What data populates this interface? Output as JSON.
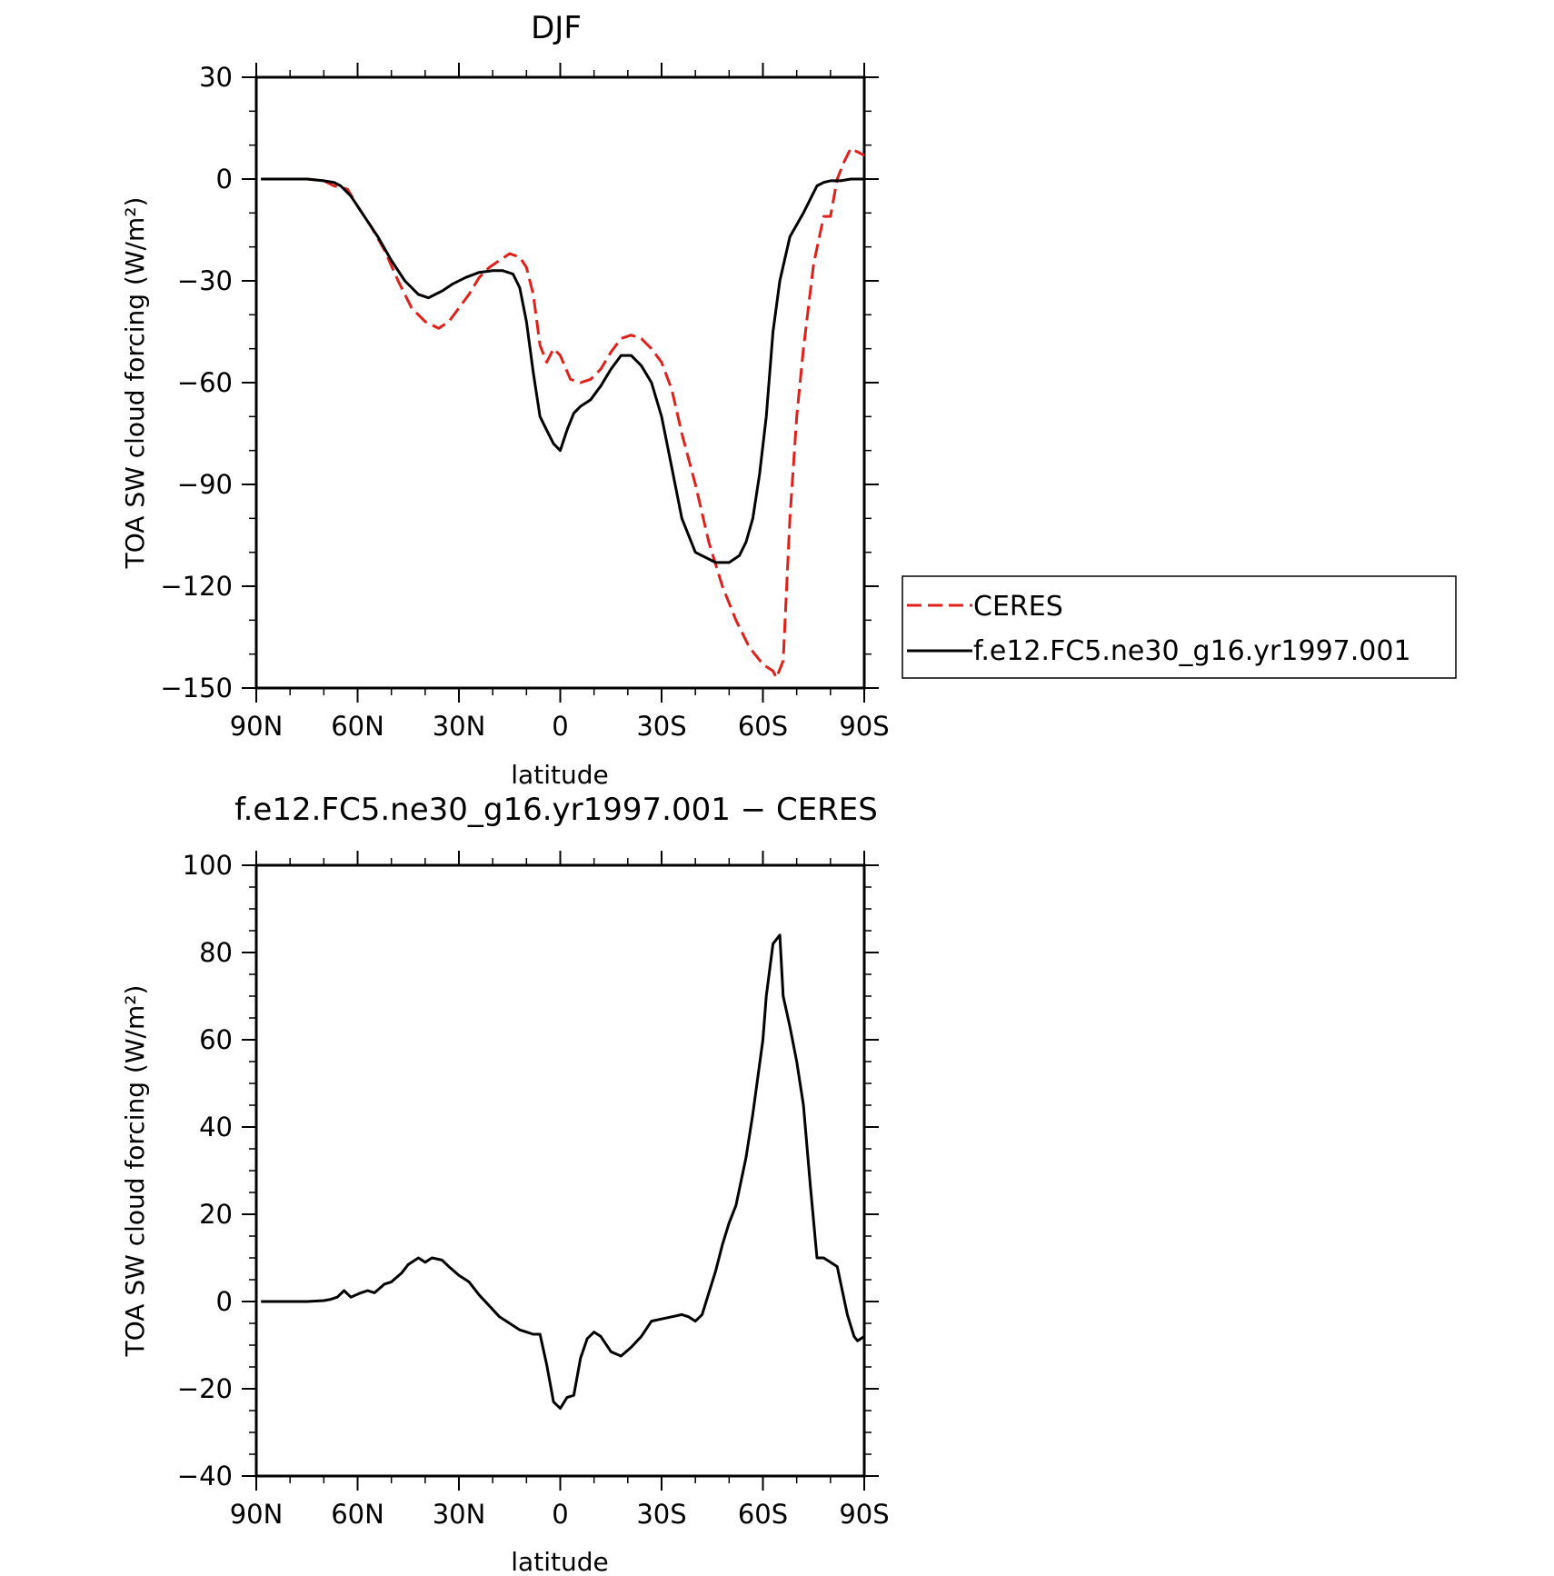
{
  "colors": {
    "ceres": "#e0201b",
    "model": "#000000",
    "axes": "#000000",
    "background": "#ffffff"
  },
  "chart_data": [
    {
      "type": "line",
      "title": "DJF",
      "xlabel": "latitude",
      "ylabel": "TOA SW cloud forcing (W/m²)",
      "xlim": [
        90,
        -90
      ],
      "ylim": [
        -150,
        30
      ],
      "x_ticks": [
        {
          "value": 90,
          "label": "90N"
        },
        {
          "value": 60,
          "label": "60N"
        },
        {
          "value": 30,
          "label": "30N"
        },
        {
          "value": 0,
          "label": "0"
        },
        {
          "value": -30,
          "label": "30S"
        },
        {
          "value": -60,
          "label": "60S"
        },
        {
          "value": -90,
          "label": "90S"
        }
      ],
      "y_ticks": [
        {
          "value": 30,
          "label": "30"
        },
        {
          "value": 0,
          "label": "0"
        },
        {
          "value": -30,
          "label": "−30"
        },
        {
          "value": -60,
          "label": "−60"
        },
        {
          "value": -90,
          "label": "−90"
        },
        {
          "value": -120,
          "label": "−120"
        },
        {
          "value": -150,
          "label": "−150"
        }
      ],
      "grid": false,
      "legend_position": "right",
      "series": [
        {
          "name": "CERES",
          "style": "dashed",
          "color": "#e0201b",
          "x": [
            88.6,
            80,
            75,
            70,
            67,
            63,
            60,
            56,
            52,
            48,
            44,
            40,
            36,
            33,
            30,
            27,
            24,
            21,
            18,
            15,
            12,
            10,
            8,
            6,
            4,
            2,
            0,
            -3,
            -6,
            -9,
            -12,
            -15,
            -18,
            -21,
            -24,
            -27,
            -30,
            -33,
            -36,
            -40,
            -44,
            -48,
            -52,
            -56,
            -60,
            -63,
            -64,
            -66,
            -68,
            -70,
            -72,
            -75,
            -78,
            -80,
            -82,
            -84,
            -86,
            -88,
            -90
          ],
          "y": [
            0,
            0,
            0,
            -0.5,
            -2,
            -3,
            -8,
            -14,
            -21,
            -30,
            -38,
            -42,
            -44,
            -42,
            -38,
            -34,
            -29,
            -26,
            -24,
            -22,
            -23,
            -26,
            -34,
            -49,
            -54,
            -50,
            -52,
            -59,
            -60,
            -59,
            -56,
            -51,
            -47,
            -46,
            -47,
            -50,
            -54,
            -62,
            -75,
            -90,
            -107,
            -120,
            -130,
            -138,
            -143,
            -145,
            -147,
            -142,
            -100,
            -70,
            -50,
            -25,
            -11,
            -11,
            0,
            5,
            9,
            8,
            7
          ]
        },
        {
          "name": "f.e12.FC5.ne30_g16.yr1997.001",
          "style": "solid",
          "color": "#000000",
          "x": [
            88.6,
            80,
            75,
            70,
            67,
            65,
            62,
            58,
            54,
            50,
            46,
            42,
            39,
            37,
            35,
            32,
            28,
            24,
            20,
            17,
            14,
            12,
            10,
            8,
            6,
            4,
            2,
            0,
            -2,
            -4,
            -6,
            -9,
            -12,
            -15,
            -18,
            -21,
            -24,
            -27,
            -30,
            -33,
            -36,
            -40,
            -44,
            -46,
            -48,
            -50,
            -53,
            -55,
            -57,
            -59,
            -61,
            -63,
            -65,
            -68,
            -72,
            -74,
            -76,
            -78,
            -80,
            -83,
            -86,
            -88,
            -90
          ],
          "y": [
            0,
            0,
            0,
            -0.5,
            -1,
            -2,
            -5,
            -11,
            -17,
            -24,
            -30,
            -34,
            -35,
            -34,
            -33,
            -31,
            -29,
            -27.5,
            -27,
            -27,
            -28,
            -32,
            -42,
            -57,
            -70,
            -74,
            -78,
            -80,
            -74,
            -69,
            -67,
            -65,
            -61,
            -56,
            -52,
            -52,
            -55,
            -60,
            -70,
            -85,
            -100,
            -110,
            -112,
            -113,
            -113,
            -113,
            -111,
            -107,
            -100,
            -87,
            -70,
            -45,
            -30,
            -17,
            -10,
            -6,
            -2,
            -1,
            -0.5,
            -0.5,
            0,
            0,
            0
          ]
        }
      ]
    },
    {
      "type": "line",
      "title": "f.e12.FC5.ne30_g16.yr1997.001 − CERES",
      "xlabel": "latitude",
      "ylabel": "TOA SW cloud forcing (W/m²)",
      "xlim": [
        90,
        -90
      ],
      "ylim": [
        -40,
        100
      ],
      "x_ticks": [
        {
          "value": 90,
          "label": "90N"
        },
        {
          "value": 60,
          "label": "60N"
        },
        {
          "value": 30,
          "label": "30N"
        },
        {
          "value": 0,
          "label": "0"
        },
        {
          "value": -30,
          "label": "30S"
        },
        {
          "value": -60,
          "label": "60S"
        },
        {
          "value": -90,
          "label": "90S"
        }
      ],
      "y_ticks": [
        {
          "value": 100,
          "label": "100"
        },
        {
          "value": 80,
          "label": "80"
        },
        {
          "value": 60,
          "label": "60"
        },
        {
          "value": 40,
          "label": "40"
        },
        {
          "value": 20,
          "label": "20"
        },
        {
          "value": 0,
          "label": "0"
        },
        {
          "value": -20,
          "label": "−20"
        },
        {
          "value": -40,
          "label": "−40"
        }
      ],
      "grid": false,
      "series": [
        {
          "style": "solid",
          "color": "#000000",
          "x": [
            88.6,
            80,
            75,
            70,
            68,
            66,
            64,
            62,
            59,
            57,
            55,
            52,
            50,
            47,
            45,
            42,
            40,
            38,
            35,
            33,
            30,
            27,
            24,
            21,
            18,
            15,
            12,
            10,
            8,
            6,
            4,
            2,
            0,
            -2,
            -4,
            -6,
            -8,
            -10,
            -12,
            -15,
            -18,
            -21,
            -24,
            -27,
            -30,
            -33,
            -36,
            -38,
            -40,
            -42,
            -44,
            -46,
            -48,
            -50,
            -52,
            -55,
            -57,
            -60,
            -61,
            -63,
            -65,
            -66,
            -68,
            -70,
            -72,
            -74,
            -76,
            -78,
            -80,
            -82,
            -85,
            -87,
            -88,
            -90
          ],
          "y": [
            0,
            0,
            0,
            0.2,
            0.5,
            1,
            2.5,
            1,
            2,
            2.5,
            2,
            4,
            4.5,
            6.5,
            8.5,
            10,
            9,
            10,
            9.5,
            8,
            6,
            4.5,
            1.5,
            -1,
            -3.5,
            -5,
            -6.5,
            -7,
            -7.5,
            -7.5,
            -14.5,
            -23,
            -24.5,
            -22,
            -21.5,
            -13,
            -8.5,
            -7,
            -8,
            -11.5,
            -12.5,
            -10.5,
            -8,
            -4.5,
            -4,
            -3.5,
            -3,
            -3.5,
            -4.5,
            -3,
            2,
            7,
            13,
            18,
            22,
            33,
            43,
            60,
            70,
            82,
            84,
            70,
            63,
            55,
            45,
            27,
            10,
            10,
            9,
            8,
            -3,
            -8,
            -9,
            -8
          ]
        }
      ]
    }
  ]
}
